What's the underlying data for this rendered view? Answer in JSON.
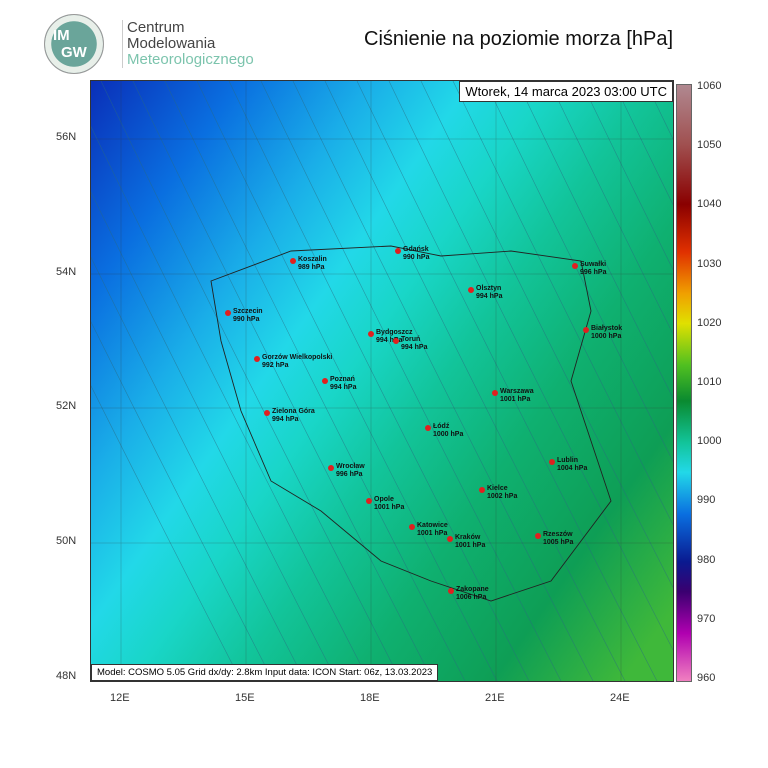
{
  "header": {
    "logo_text": "IMGW",
    "org_line1": "Centrum",
    "org_line2": "Modelowania",
    "org_line3": "Meteorologicznego",
    "title": "Ciśnienie na poziomie morza [hPa]"
  },
  "map": {
    "datetime": "Wtorek, 14 marca 2023 03:00 UTC",
    "model_info": "Model: COSMO 5.05  Grid dx/dy: 2.8km  Input data: ICON  Start: 06z, 13.03.2023",
    "lat_labels": [
      "56N",
      "54N",
      "52N",
      "50N",
      "48N"
    ],
    "lon_labels": [
      "12E",
      "15E",
      "18E",
      "21E",
      "24E"
    ],
    "cities": [
      {
        "name": "Koszalin",
        "value": "989 hPa"
      },
      {
        "name": "Gdańsk",
        "value": "990 hPa"
      },
      {
        "name": "Suwałki",
        "value": "996 hPa"
      },
      {
        "name": "Olsztyn",
        "value": "994 hPa"
      },
      {
        "name": "Szczecin",
        "value": "990 hPa"
      },
      {
        "name": "Bydgoszcz",
        "value": "994 hPa"
      },
      {
        "name": "Toruń",
        "value": "994 hPa"
      },
      {
        "name": "Białystok",
        "value": "1000 hPa"
      },
      {
        "name": "Gorzów Wielkopolski",
        "value": "992 hPa"
      },
      {
        "name": "Poznań",
        "value": "994 hPa"
      },
      {
        "name": "Warszawa",
        "value": "1001 hPa"
      },
      {
        "name": "Zielona Góra",
        "value": "994 hPa"
      },
      {
        "name": "Łódź",
        "value": "1000 hPa"
      },
      {
        "name": "Lublin",
        "value": "1004 hPa"
      },
      {
        "name": "Wrocław",
        "value": "996 hPa"
      },
      {
        "name": "Kielce",
        "value": "1002 hPa"
      },
      {
        "name": "Opole",
        "value": "1001 hPa"
      },
      {
        "name": "Katowice",
        "value": "1001 hPa"
      },
      {
        "name": "Kraków",
        "value": "1001 hPa"
      },
      {
        "name": "Rzeszów",
        "value": "1005 hPa"
      },
      {
        "name": "Zakopane",
        "value": "1006 hPa"
      }
    ]
  },
  "colorbar": {
    "labels": [
      "1060",
      "1050",
      "1040",
      "1030",
      "1020",
      "1010",
      "1000",
      "990",
      "980",
      "970",
      "960"
    ]
  }
}
